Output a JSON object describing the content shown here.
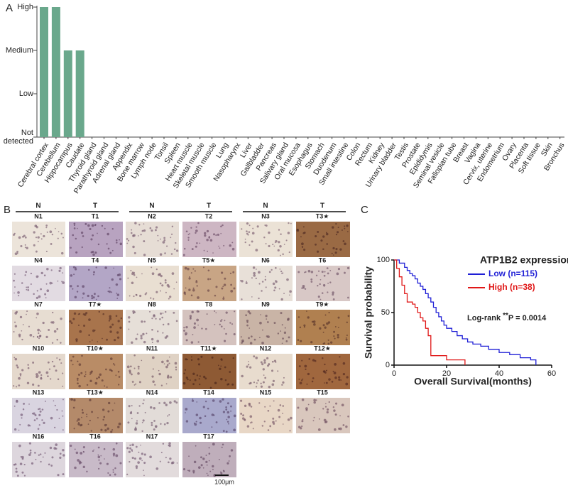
{
  "panel_labels": [
    "A",
    "B",
    "C"
  ],
  "chart_data": [
    {
      "type": "bar",
      "categories": [
        "Cerebral cortex",
        "Cerebellum",
        "Hippocampus",
        "Caudate",
        "Thyroid gland",
        "Parathyroid gland",
        "Adrenal gland",
        "Appendix",
        "Bone marrow",
        "Lymph node",
        "Tonsil",
        "Spleen",
        "Heart muscle",
        "Skeletal muscle",
        "Smooth muscle",
        "Lung",
        "Nasopharynx",
        "Liver",
        "Gallbladder",
        "Pancreas",
        "Salivary gland",
        "Oral mucosa",
        "Esophagus",
        "Stomach",
        "Duodenum",
        "Small intestine",
        "Colon",
        "Rectum",
        "Kidney",
        "Urinary bladder",
        "Testis",
        "Prostate",
        "Epididymis",
        "Seminal vesicle",
        "Fallopian tube",
        "Breast",
        "Vagina",
        "Cervix, uterine",
        "Endometrium",
        "Ovary",
        "Placenta",
        "Soft tissue",
        "Skin",
        "Bronchus"
      ],
      "values": [
        3,
        3,
        2,
        2,
        0,
        0,
        0,
        0,
        0,
        0,
        0,
        0,
        0,
        0,
        0,
        0,
        0,
        0,
        0,
        0,
        0,
        0,
        0,
        0,
        0,
        0,
        0,
        0,
        0,
        0,
        0,
        0,
        0,
        0,
        0,
        0,
        0,
        0,
        0,
        0,
        0,
        0,
        0,
        0
      ],
      "color": "#6aa88c",
      "ylim": [
        0,
        3
      ],
      "yticks": [
        {
          "value": 0,
          "label": "Not detected"
        },
        {
          "value": 1,
          "label": "Low"
        },
        {
          "value": 2,
          "label": "Medium"
        },
        {
          "value": 3,
          "label": "High"
        }
      ]
    },
    {
      "type": "line",
      "step": true,
      "legend_title": "ATP1B2 expression",
      "annotation": [
        "Log-rank ",
        "**",
        "P = 0.0014"
      ],
      "xlabel": "Overall Survival(months)",
      "ylabel": "Survival probability",
      "xlim": [
        0,
        60
      ],
      "xticks": [
        0,
        20,
        40,
        60
      ],
      "ylim": [
        0,
        100
      ],
      "yticks": [
        0,
        50,
        100
      ],
      "series": [
        {
          "name": "Low (n=115)",
          "color": "#1f1fd6",
          "x": [
            0,
            2,
            4,
            5,
            6,
            7,
            8,
            9,
            10,
            11,
            12,
            13,
            14,
            15,
            16,
            17,
            18,
            19,
            20,
            22,
            24,
            26,
            28,
            30,
            33,
            36,
            40,
            44,
            48,
            52,
            54
          ],
          "values": [
            100,
            97,
            93,
            90,
            87,
            85,
            82,
            78,
            75,
            72,
            68,
            64,
            60,
            55,
            50,
            46,
            42,
            38,
            35,
            32,
            28,
            25,
            22,
            20,
            18,
            15,
            12,
            10,
            7,
            5,
            0
          ]
        },
        {
          "name": "High (n=38)",
          "color": "#e01818",
          "x": [
            0,
            1,
            2,
            3,
            4,
            5,
            7,
            8,
            9,
            10,
            11,
            12,
            13,
            14,
            20,
            27
          ],
          "values": [
            100,
            92,
            84,
            76,
            68,
            60,
            58,
            55,
            50,
            45,
            42,
            35,
            28,
            9,
            5,
            0
          ]
        }
      ]
    }
  ],
  "tissue_panel": {
    "headers": [
      "N",
      "T"
    ],
    "samples": [
      [
        "N1",
        "T1"
      ],
      [
        "N2",
        "T2"
      ],
      [
        "N3",
        "T3★"
      ],
      [
        "N4",
        "T4"
      ],
      [
        "N5",
        "T5★"
      ],
      [
        "N6",
        "T6"
      ],
      [
        "N7",
        "T7★"
      ],
      [
        "N8",
        "T8"
      ],
      [
        "N9",
        "T9★"
      ],
      [
        "N10",
        "T10★"
      ],
      [
        "N11",
        "T11★"
      ],
      [
        "N12",
        "T12★"
      ],
      [
        "N13",
        "T13★"
      ],
      [
        "N14",
        "T14"
      ],
      [
        "N15",
        "T15"
      ],
      [
        "N16",
        "T16"
      ],
      [
        "N17",
        "T17"
      ]
    ],
    "scale_bar": "100μm"
  }
}
